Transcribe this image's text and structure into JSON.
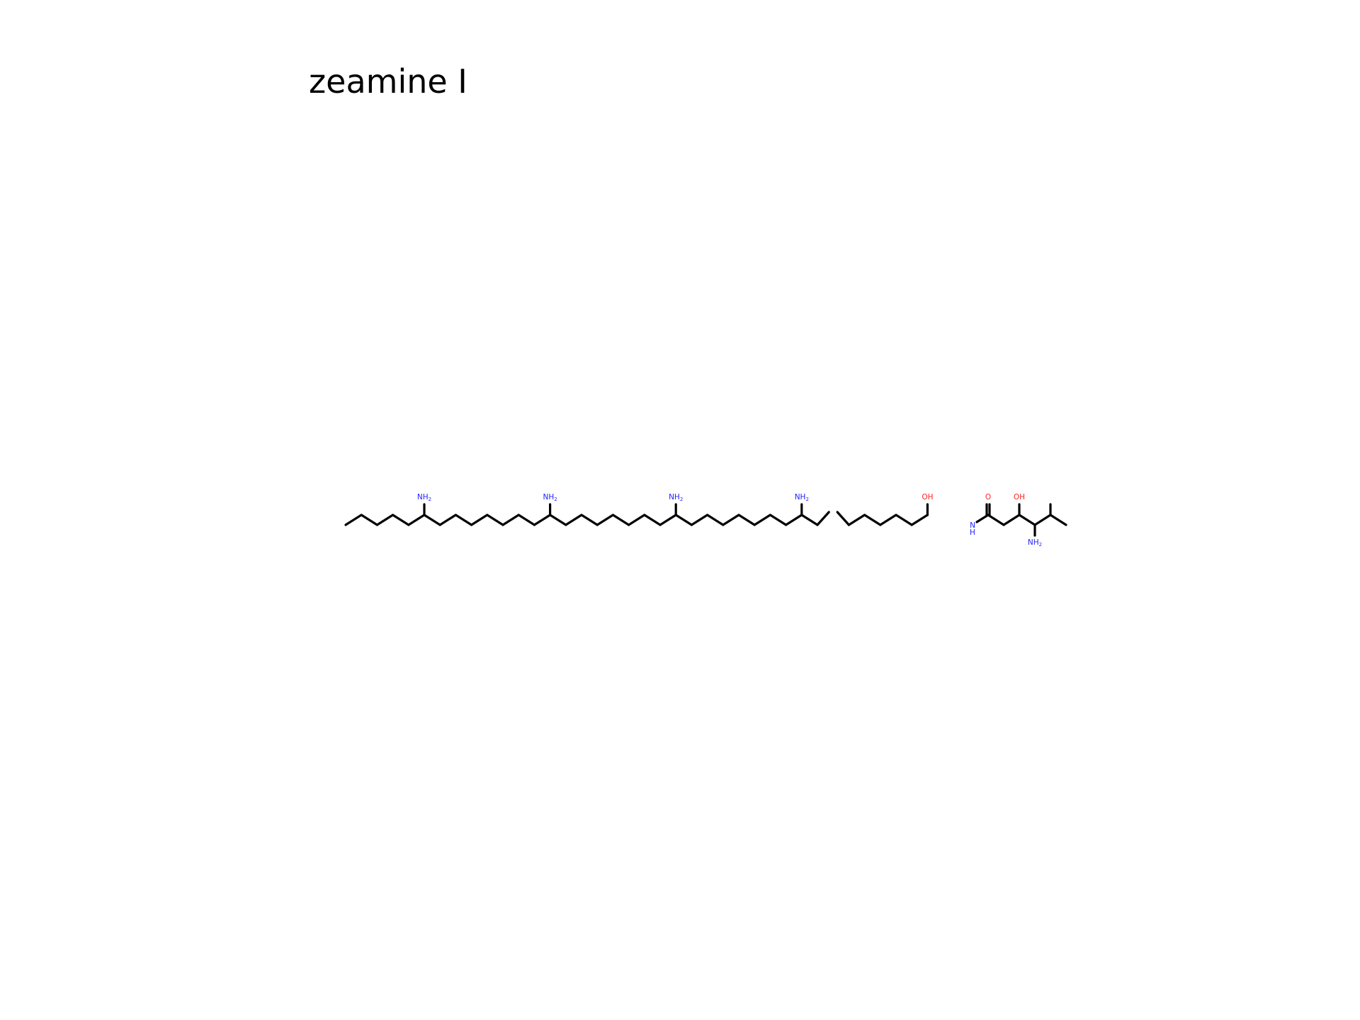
{
  "title": "zeamine I",
  "molecule": {
    "amine_label": "NH",
    "amine_subscript": "2",
    "hydroxyl_label": "OH",
    "carbonyl_label": "O",
    "amide_n_label": "N",
    "amide_h_label": "H",
    "colors": {
      "bond": "#000000",
      "nitrogen": "#1f1fff",
      "oxygen": "#ff1f1f"
    }
  }
}
